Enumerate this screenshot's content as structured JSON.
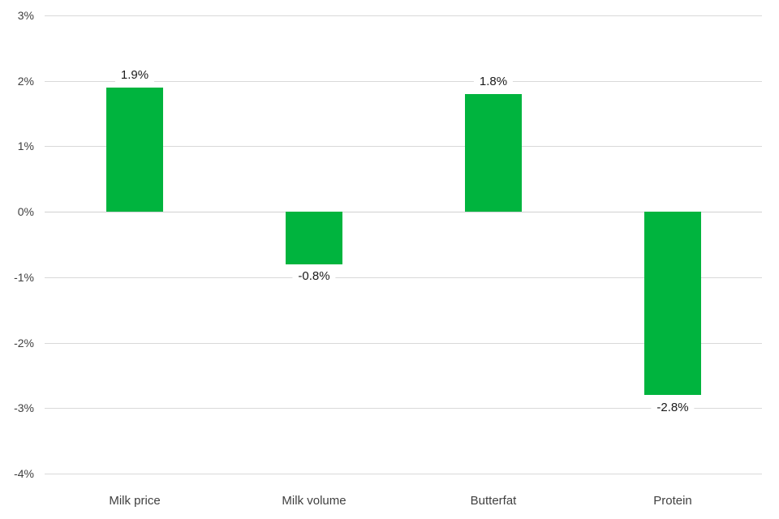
{
  "chart_data": {
    "type": "bar",
    "categories": [
      "Milk price",
      "Milk volume",
      "Butterfat",
      "Protein"
    ],
    "values": [
      1.9,
      -0.8,
      1.8,
      -2.8
    ],
    "data_labels": [
      "1.9%",
      "-0.8%",
      "1.8%",
      "-2.8%"
    ],
    "title": "",
    "xlabel": "",
    "ylabel": "",
    "ylim": [
      -4,
      3
    ],
    "ytick_step": 1,
    "yticks": [
      3,
      2,
      1,
      0,
      -1,
      -2,
      -3,
      -4
    ],
    "ytick_labels": [
      "3%",
      "2%",
      "1%",
      "0%",
      "-1%",
      "-2%",
      "-3%",
      "-4%"
    ],
    "grid": true,
    "legend": false,
    "colors": {
      "bar": "#00b43e",
      "gridline": "#d9d9d9",
      "zero_line": "#d0d0d0",
      "tick_text": "#404040",
      "category_text": "#404040",
      "value_text": "#1a1a1a",
      "background": "#ffffff"
    }
  }
}
